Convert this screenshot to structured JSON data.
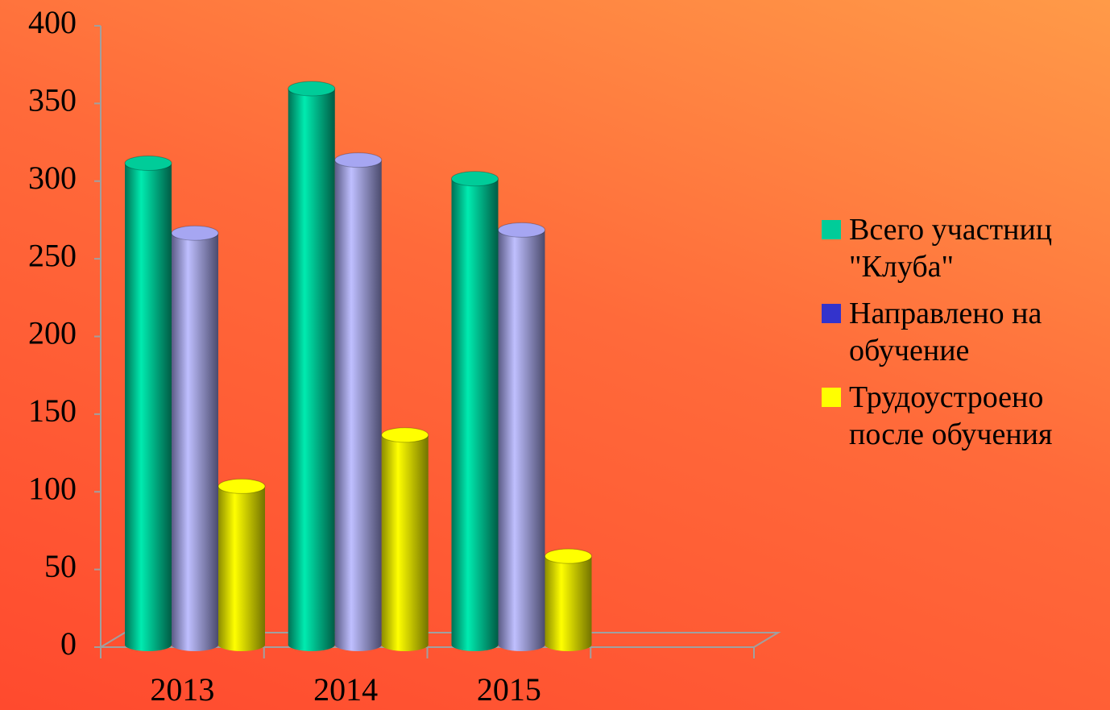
{
  "chart_data": {
    "type": "bar",
    "categories": [
      "2013",
      "2014",
      "2015",
      null
    ],
    "series": [
      {
        "name": "Всего участниц \"Клуба\"",
        "color": "#00cc99",
        "legend_color": "#00cc99",
        "values": [
          310,
          358,
          300,
          null
        ]
      },
      {
        "name": "Направлено на обучение",
        "color": "#a6a6f2",
        "legend_color": "#3333cc",
        "values": [
          265,
          312,
          267,
          null
        ]
      },
      {
        "name": "Трудоустроено после обучения",
        "color": "#ffff00",
        "legend_color": "#ffff00",
        "values": [
          102,
          135,
          57,
          null
        ]
      }
    ],
    "ylim": [
      0,
      400
    ],
    "yticks": [
      0,
      50,
      100,
      150,
      200,
      250,
      300,
      350,
      400
    ],
    "legend": "right"
  }
}
